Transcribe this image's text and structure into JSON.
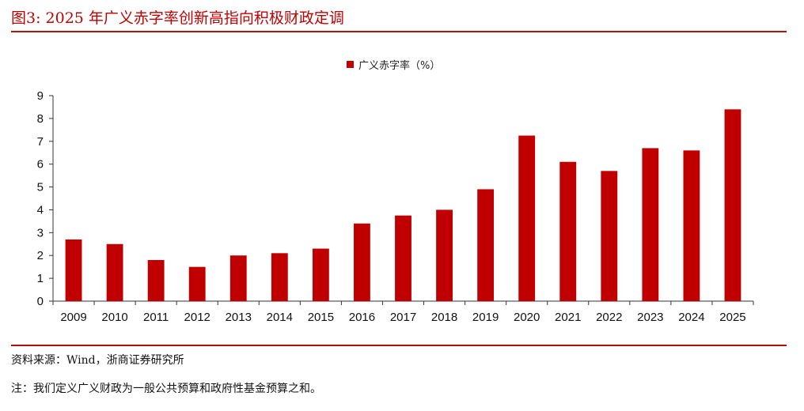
{
  "title": "图3:  2025 年广义赤字率创新高指向积极财政定调",
  "chart_data": {
    "type": "bar",
    "title": "",
    "legend": [
      "广义赤字率（%）"
    ],
    "legend_position": "top-center",
    "categories": [
      "2009",
      "2010",
      "2011",
      "2012",
      "2013",
      "2014",
      "2015",
      "2016",
      "2017",
      "2018",
      "2019",
      "2020",
      "2021",
      "2022",
      "2023",
      "2024",
      "2025"
    ],
    "series": [
      {
        "name": "广义赤字率（%）",
        "values": [
          2.7,
          2.5,
          1.8,
          1.5,
          2.0,
          2.1,
          2.3,
          3.4,
          3.75,
          4.0,
          4.9,
          7.25,
          6.1,
          5.7,
          6.7,
          6.6,
          8.4
        ]
      }
    ],
    "xlabel": "",
    "ylabel": "",
    "ylim": [
      0,
      9
    ],
    "yticks": [
      "0",
      "1",
      "2",
      "3",
      "4",
      "5",
      "6",
      "7",
      "8",
      "9"
    ],
    "grid": false,
    "bar_color": "#c00000"
  },
  "source": "资料来源：Wind，浙商证券研究所",
  "note": "注：我们定义广义财政为一般公共预算和政府性基金预算之和。"
}
